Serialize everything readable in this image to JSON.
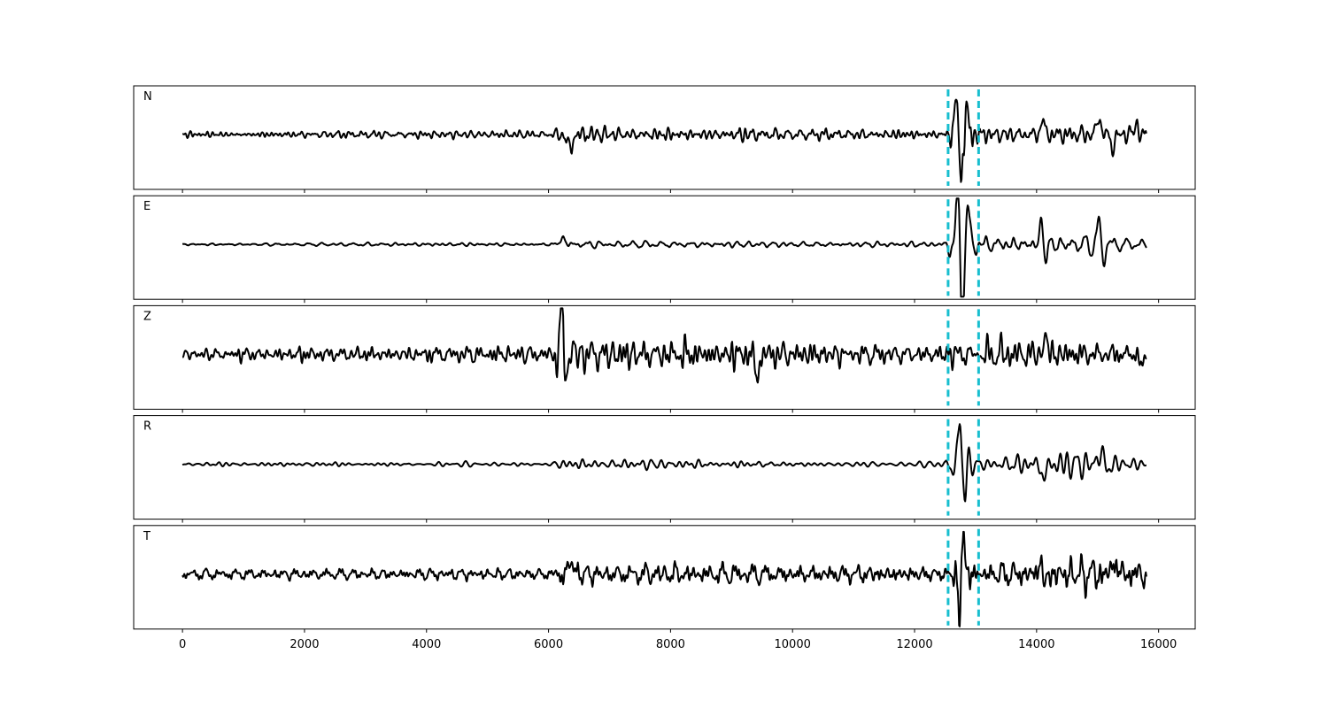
{
  "chart_data": {
    "type": "line",
    "xlim": [
      -800,
      16600
    ],
    "x_ticks": [
      0,
      2000,
      4000,
      6000,
      8000,
      10000,
      12000,
      14000,
      16000
    ],
    "x_tick_labels": [
      "0",
      "2000",
      "4000",
      "6000",
      "8000",
      "10000",
      "12000",
      "14000",
      "16000"
    ],
    "sample_count": 15800,
    "markers": [
      12550,
      13050
    ],
    "colors": {
      "trace": "#000000",
      "marker": "#17becf"
    },
    "panels": [
      {
        "label": "N",
        "envelope": [
          [
            0,
            0.09
          ],
          [
            6000,
            0.09
          ],
          [
            6250,
            0.22
          ],
          [
            7000,
            0.16
          ],
          [
            9000,
            0.16
          ],
          [
            12000,
            0.13
          ],
          [
            12500,
            0.12
          ],
          [
            12800,
            1.0
          ],
          [
            13000,
            0.3
          ],
          [
            13200,
            0.18
          ],
          [
            15000,
            0.22
          ],
          [
            15500,
            0.22
          ],
          [
            15800,
            0.18
          ]
        ],
        "events": [
          [
            6350,
            -0.32,
            60
          ],
          [
            12680,
            0.95,
            28
          ],
          [
            12760,
            -1.0,
            28
          ],
          [
            12860,
            0.52,
            30
          ],
          [
            14100,
            0.35,
            40
          ],
          [
            15020,
            0.45,
            40
          ],
          [
            15250,
            -0.35,
            40
          ],
          [
            15620,
            0.25,
            40
          ]
        ]
      },
      {
        "label": "E",
        "envelope": [
          [
            0,
            0.03
          ],
          [
            6000,
            0.05
          ],
          [
            6250,
            0.14
          ],
          [
            7000,
            0.08
          ],
          [
            9000,
            0.08
          ],
          [
            12000,
            0.06
          ],
          [
            12500,
            0.06
          ],
          [
            12800,
            1.0
          ],
          [
            13000,
            0.3
          ],
          [
            13200,
            0.22
          ],
          [
            14000,
            0.28
          ],
          [
            15000,
            0.3
          ],
          [
            15500,
            0.15
          ],
          [
            15800,
            0.1
          ]
        ],
        "events": [
          [
            6230,
            0.16,
            50
          ],
          [
            12700,
            0.9,
            28
          ],
          [
            12780,
            -1.0,
            28
          ],
          [
            12880,
            0.5,
            30
          ],
          [
            14080,
            0.5,
            40
          ],
          [
            14150,
            -0.3,
            40
          ],
          [
            15030,
            0.45,
            40
          ],
          [
            15100,
            -0.3,
            40
          ]
        ]
      },
      {
        "label": "Z",
        "envelope": [
          [
            0,
            0.12
          ],
          [
            2300,
            0.2
          ],
          [
            2500,
            0.17
          ],
          [
            6000,
            0.22
          ],
          [
            6200,
            0.45
          ],
          [
            7000,
            0.38
          ],
          [
            9000,
            0.4
          ],
          [
            10000,
            0.3
          ],
          [
            12000,
            0.2
          ],
          [
            12700,
            0.28
          ],
          [
            13500,
            0.35
          ],
          [
            15000,
            0.3
          ],
          [
            15800,
            0.22
          ]
        ],
        "events": [
          [
            6220,
            1.3,
            30
          ],
          [
            6280,
            -0.5,
            30
          ],
          [
            9420,
            -0.6,
            40
          ],
          [
            14150,
            0.45,
            40
          ],
          [
            15720,
            -0.3,
            40
          ]
        ]
      },
      {
        "label": "R",
        "envelope": [
          [
            0,
            0.04
          ],
          [
            6000,
            0.05
          ],
          [
            6250,
            0.14
          ],
          [
            7000,
            0.1
          ],
          [
            9000,
            0.08
          ],
          [
            12000,
            0.07
          ],
          [
            12500,
            0.08
          ],
          [
            12800,
            1.0
          ],
          [
            13000,
            0.25
          ],
          [
            13200,
            0.14
          ],
          [
            14000,
            0.3
          ],
          [
            15000,
            0.35
          ],
          [
            15400,
            0.14
          ],
          [
            15800,
            0.1
          ]
        ],
        "events": [
          [
            12750,
            1.0,
            30
          ],
          [
            12830,
            -0.6,
            30
          ],
          [
            14120,
            -0.4,
            40
          ],
          [
            15060,
            0.5,
            40
          ],
          [
            15130,
            -0.25,
            40
          ]
        ]
      },
      {
        "label": "T",
        "envelope": [
          [
            0,
            0.15
          ],
          [
            6000,
            0.15
          ],
          [
            6200,
            0.35
          ],
          [
            7000,
            0.25
          ],
          [
            9000,
            0.28
          ],
          [
            12000,
            0.22
          ],
          [
            12500,
            0.2
          ],
          [
            12800,
            1.0
          ],
          [
            13000,
            0.3
          ],
          [
            13200,
            0.3
          ],
          [
            15000,
            0.45
          ],
          [
            15800,
            0.4
          ]
        ],
        "events": [
          [
            6380,
            0.4,
            40
          ],
          [
            12730,
            -1.0,
            28
          ],
          [
            12800,
            1.0,
            28
          ],
          [
            14070,
            0.55,
            40
          ],
          [
            14110,
            -0.45,
            40
          ],
          [
            15280,
            0.4,
            40
          ]
        ]
      }
    ]
  }
}
